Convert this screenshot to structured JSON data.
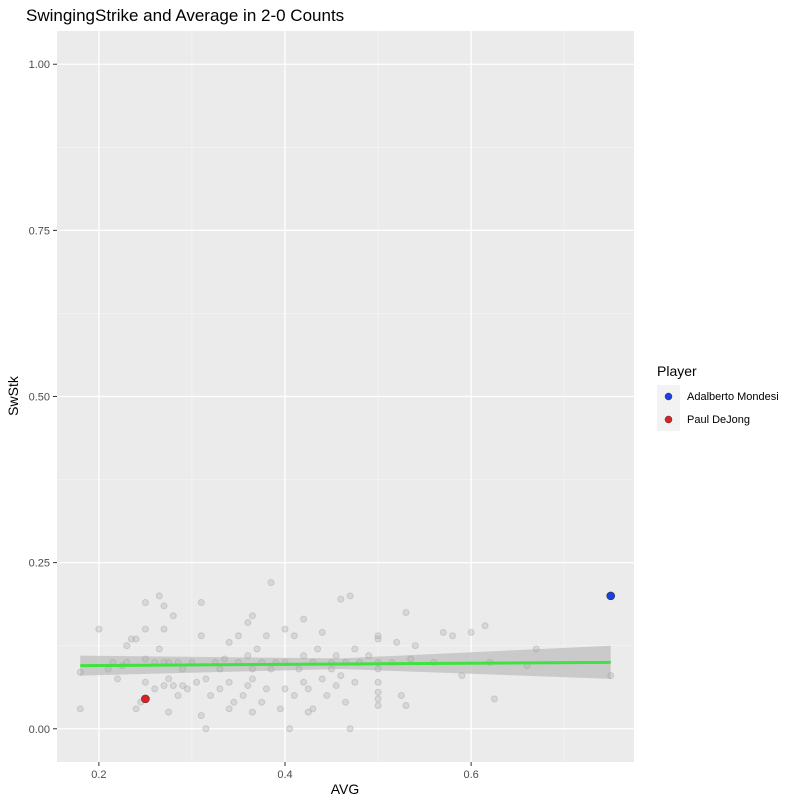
{
  "chart_data": {
    "type": "scatter",
    "title": "SwingingStrike and Average in 2-0 Counts",
    "xlabel": "AVG",
    "ylabel": "SwStk",
    "xlim": [
      0.155,
      0.775
    ],
    "ylim": [
      -0.05,
      1.05
    ],
    "x_ticks": [
      0.2,
      0.4,
      0.6
    ],
    "x_tick_labels": [
      "0.2",
      "0.4",
      "0.6"
    ],
    "y_ticks": [
      0.0,
      0.25,
      0.5,
      0.75,
      1.0
    ],
    "y_tick_labels": [
      "0.00",
      "0.25",
      "0.50",
      "0.75",
      "1.00"
    ],
    "grid": true,
    "background_points": [
      [
        0.18,
        0.03
      ],
      [
        0.18,
        0.085
      ],
      [
        0.2,
        0.15
      ],
      [
        0.21,
        0.09
      ],
      [
        0.215,
        0.1
      ],
      [
        0.22,
        0.075
      ],
      [
        0.225,
        0.095
      ],
      [
        0.23,
        0.1
      ],
      [
        0.23,
        0.125
      ],
      [
        0.235,
        0.135
      ],
      [
        0.24,
        0.03
      ],
      [
        0.24,
        0.135
      ],
      [
        0.245,
        0.04
      ],
      [
        0.25,
        0.07
      ],
      [
        0.25,
        0.105
      ],
      [
        0.25,
        0.15
      ],
      [
        0.25,
        0.19
      ],
      [
        0.26,
        0.06
      ],
      [
        0.26,
        0.1
      ],
      [
        0.265,
        0.12
      ],
      [
        0.265,
        0.2
      ],
      [
        0.27,
        0.065
      ],
      [
        0.27,
        0.1
      ],
      [
        0.27,
        0.15
      ],
      [
        0.27,
        0.185
      ],
      [
        0.275,
        0.025
      ],
      [
        0.275,
        0.075
      ],
      [
        0.275,
        0.1
      ],
      [
        0.28,
        0.065
      ],
      [
        0.28,
        0.17
      ],
      [
        0.285,
        0.05
      ],
      [
        0.285,
        0.1
      ],
      [
        0.29,
        0.065
      ],
      [
        0.29,
        0.09
      ],
      [
        0.295,
        0.06
      ],
      [
        0.3,
        0.1
      ],
      [
        0.305,
        0.07
      ],
      [
        0.31,
        0.02
      ],
      [
        0.31,
        0.14
      ],
      [
        0.31,
        0.19
      ],
      [
        0.315,
        0.0
      ],
      [
        0.315,
        0.075
      ],
      [
        0.32,
        0.05
      ],
      [
        0.325,
        0.1
      ],
      [
        0.33,
        0.06
      ],
      [
        0.33,
        0.09
      ],
      [
        0.335,
        0.105
      ],
      [
        0.34,
        0.03
      ],
      [
        0.34,
        0.07
      ],
      [
        0.34,
        0.13
      ],
      [
        0.345,
        0.04
      ],
      [
        0.35,
        0.1
      ],
      [
        0.35,
        0.14
      ],
      [
        0.355,
        0.05
      ],
      [
        0.36,
        0.065
      ],
      [
        0.36,
        0.11
      ],
      [
        0.36,
        0.16
      ],
      [
        0.365,
        0.025
      ],
      [
        0.365,
        0.075
      ],
      [
        0.365,
        0.09
      ],
      [
        0.365,
        0.17
      ],
      [
        0.37,
        0.12
      ],
      [
        0.375,
        0.04
      ],
      [
        0.375,
        0.1
      ],
      [
        0.38,
        0.06
      ],
      [
        0.38,
        0.14
      ],
      [
        0.385,
        0.09
      ],
      [
        0.385,
        0.22
      ],
      [
        0.39,
        0.1
      ],
      [
        0.395,
        0.03
      ],
      [
        0.4,
        0.06
      ],
      [
        0.4,
        0.1
      ],
      [
        0.4,
        0.15
      ],
      [
        0.405,
        0.0
      ],
      [
        0.41,
        0.05
      ],
      [
        0.41,
        0.14
      ],
      [
        0.415,
        0.09
      ],
      [
        0.42,
        0.07
      ],
      [
        0.42,
        0.11
      ],
      [
        0.42,
        0.165
      ],
      [
        0.425,
        0.025
      ],
      [
        0.425,
        0.06
      ],
      [
        0.43,
        0.03
      ],
      [
        0.43,
        0.1
      ],
      [
        0.435,
        0.12
      ],
      [
        0.44,
        0.075
      ],
      [
        0.44,
        0.145
      ],
      [
        0.445,
        0.05
      ],
      [
        0.45,
        0.09
      ],
      [
        0.45,
        0.1
      ],
      [
        0.455,
        0.065
      ],
      [
        0.455,
        0.11
      ],
      [
        0.46,
        0.08
      ],
      [
        0.46,
        0.195
      ],
      [
        0.465,
        0.04
      ],
      [
        0.465,
        0.1
      ],
      [
        0.47,
        0.0
      ],
      [
        0.47,
        0.2
      ],
      [
        0.475,
        0.07
      ],
      [
        0.475,
        0.12
      ],
      [
        0.48,
        0.1
      ],
      [
        0.49,
        0.11
      ],
      [
        0.5,
        0.035
      ],
      [
        0.5,
        0.045
      ],
      [
        0.5,
        0.055
      ],
      [
        0.5,
        0.07
      ],
      [
        0.5,
        0.09
      ],
      [
        0.5,
        0.1
      ],
      [
        0.5,
        0.135
      ],
      [
        0.5,
        0.14
      ],
      [
        0.515,
        0.1
      ],
      [
        0.52,
        0.13
      ],
      [
        0.525,
        0.05
      ],
      [
        0.53,
        0.035
      ],
      [
        0.53,
        0.175
      ],
      [
        0.535,
        0.105
      ],
      [
        0.54,
        0.125
      ],
      [
        0.56,
        0.1
      ],
      [
        0.57,
        0.145
      ],
      [
        0.58,
        0.14
      ],
      [
        0.59,
        0.08
      ],
      [
        0.6,
        0.145
      ],
      [
        0.615,
        0.155
      ],
      [
        0.62,
        0.1
      ],
      [
        0.625,
        0.045
      ],
      [
        0.66,
        0.095
      ],
      [
        0.67,
        0.12
      ],
      [
        0.75,
        0.08
      ]
    ],
    "series": [
      {
        "name": "Adalberto Mondesi",
        "color": "#1d3fdf",
        "points": [
          [
            0.75,
            0.2
          ]
        ]
      },
      {
        "name": "Paul DeJong",
        "color": "#e02020",
        "points": [
          [
            0.25,
            0.045
          ]
        ]
      }
    ],
    "trend_line": {
      "color": "#3fe23f",
      "points": [
        [
          0.18,
          0.095
        ],
        [
          0.75,
          0.1
        ]
      ],
      "ribbon": [
        [
          0.18,
          0.08,
          0.11
        ],
        [
          0.46,
          0.09,
          0.106
        ],
        [
          0.75,
          0.075,
          0.125
        ]
      ]
    },
    "legend": {
      "title": "Player",
      "placement": "right"
    }
  }
}
